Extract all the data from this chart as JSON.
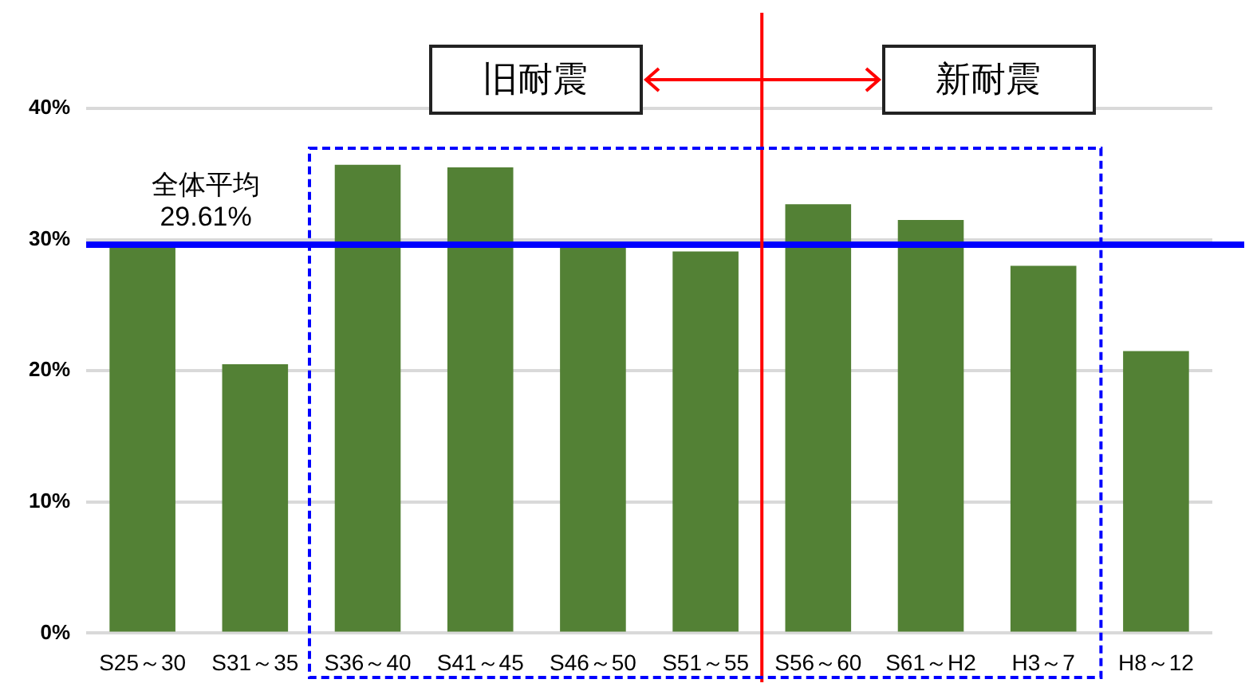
{
  "chart_data": {
    "type": "bar",
    "categories": [
      "S25～30",
      "S31～35",
      "S36～40",
      "S41～45",
      "S46～50",
      "S51～55",
      "S56～60",
      "S61～H2",
      "H3～7",
      "H8～12"
    ],
    "values": [
      29.5,
      20.5,
      35.7,
      35.5,
      29.5,
      29.1,
      32.7,
      31.5,
      28.0,
      21.5
    ],
    "color": "#538135",
    "ylim": [
      0,
      40
    ],
    "yticks": [
      {
        "value": 0,
        "label": "0%"
      },
      {
        "value": 10,
        "label": "10%"
      },
      {
        "value": 20,
        "label": "20%"
      },
      {
        "value": 30,
        "label": "30%"
      },
      {
        "value": 40,
        "label": "40%"
      }
    ],
    "grid": "y",
    "ref_lines": [
      {
        "axis": "y",
        "value": 29.61,
        "label": "全体平均\n29.61%",
        "color": "#0000ff"
      },
      {
        "axis": "x",
        "value": "S56～60",
        "color": "#ff0000"
      }
    ],
    "annotations": [
      "旧耐震",
      "新耐震"
    ]
  }
}
